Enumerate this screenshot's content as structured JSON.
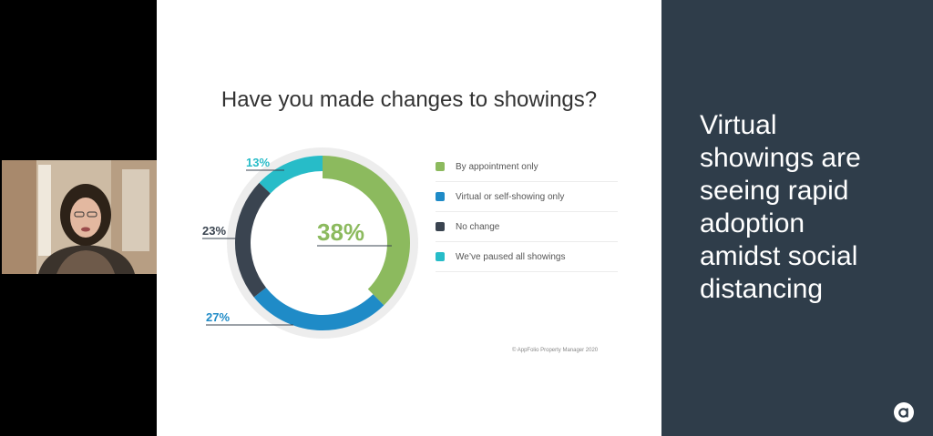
{
  "slide": {
    "title": "Have you made changes to showings?",
    "copyright": "© AppFolio Property Manager 2020"
  },
  "chart_data": {
    "type": "pie",
    "title": "Have you made changes to showings?",
    "categories": [
      "By appointment only",
      "Virtual or self-showing only",
      "No change",
      "We’ve paused all showings"
    ],
    "values": [
      38,
      27,
      23,
      13
    ],
    "labels": [
      "38%",
      "27%",
      "23%",
      "13%"
    ],
    "colors": [
      "#8cba5e",
      "#1f8bc7",
      "#3a4450",
      "#27bcc8"
    ],
    "legend": "right"
  },
  "side_panel": {
    "headline_lines": [
      "Virtual",
      "showings are",
      "seeing rapid",
      "adoption",
      "amidst social",
      "distancing"
    ]
  },
  "colors": {
    "panel_bg": "#2f3d4a",
    "accent_green": "#8cba5e",
    "accent_blue": "#1f8bc7",
    "accent_dark": "#3a4450",
    "accent_teal": "#27bcc8"
  },
  "icons": {
    "brand": "appfolio-logo-icon",
    "participant": "webcam-video-feed"
  }
}
